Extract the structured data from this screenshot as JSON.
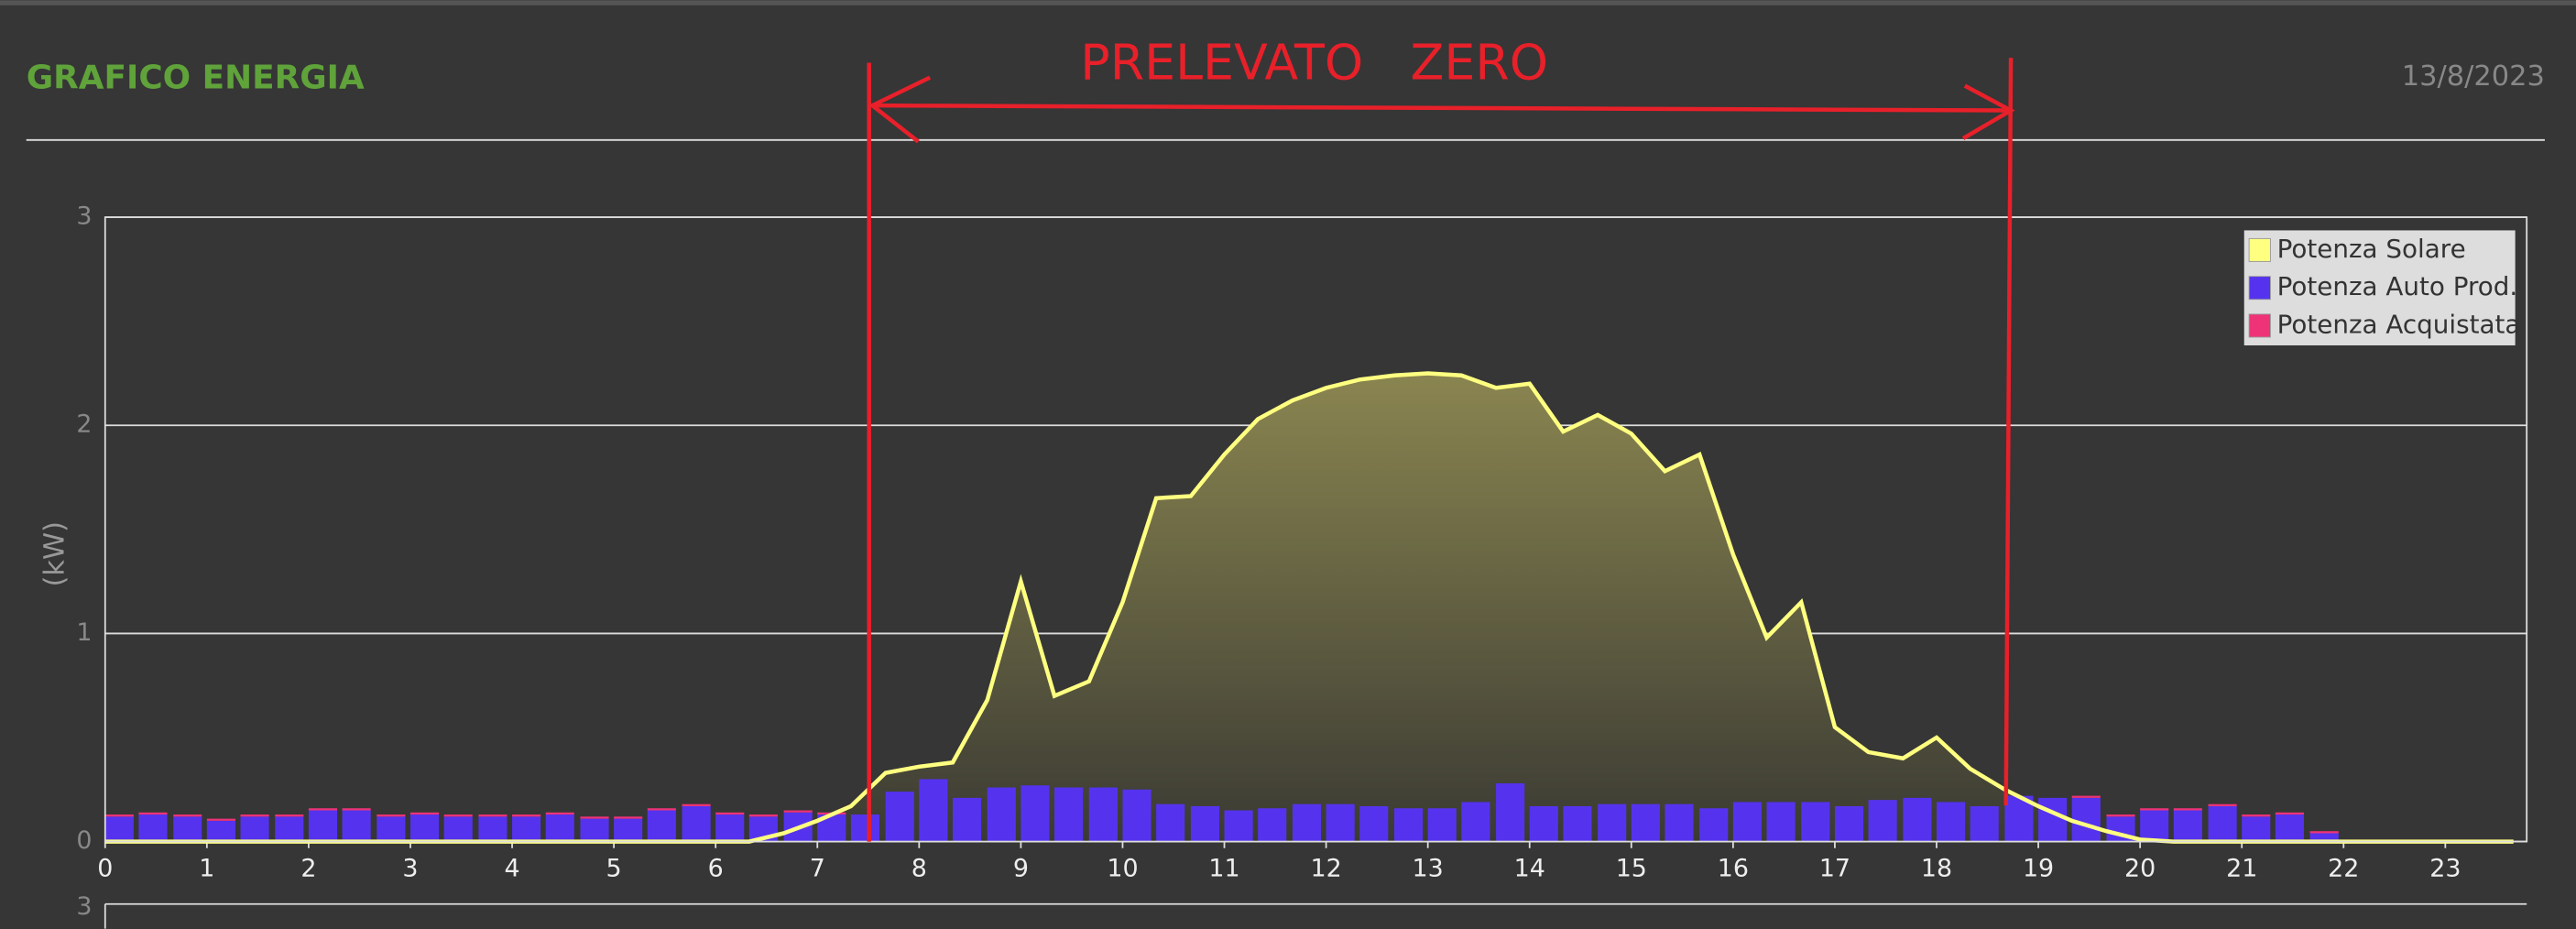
{
  "header": {
    "title": "GRAFICO ENERGIA",
    "date": "13/8/2023"
  },
  "annotation": "PRELEVATO   ZERO",
  "chart_data": {
    "type": "bar-line",
    "y_label": "(kW)",
    "x": [
      0,
      0.33,
      0.67,
      1,
      1.33,
      1.67,
      2,
      2.33,
      2.67,
      3,
      3.33,
      3.67,
      4,
      4.33,
      4.67,
      5,
      5.33,
      5.67,
      6,
      6.33,
      6.67,
      7,
      7.33,
      7.67,
      8,
      8.33,
      8.67,
      9,
      9.33,
      9.67,
      10,
      10.33,
      10.67,
      11,
      11.33,
      11.67,
      12,
      12.33,
      12.67,
      13,
      13.33,
      13.67,
      14,
      14.33,
      14.67,
      15,
      15.33,
      15.67,
      16,
      16.33,
      16.67,
      17,
      17.33,
      17.67,
      18,
      18.33,
      18.67,
      19,
      19.33,
      19.67,
      20,
      20.33,
      20.67,
      21,
      21.33,
      21.67,
      22,
      22.33,
      22.67,
      23,
      23.33,
      23.67
    ],
    "series": [
      {
        "name": "Potenza Solare",
        "color": "#ffff80",
        "values": [
          0,
          0,
          0,
          0,
          0,
          0,
          0,
          0,
          0,
          0,
          0,
          0,
          0,
          0,
          0,
          0,
          0,
          0,
          0,
          0,
          0.04,
          0.1,
          0.17,
          0.33,
          0.36,
          0.38,
          0.68,
          1.25,
          0.7,
          0.77,
          1.15,
          1.65,
          1.66,
          1.86,
          2.03,
          2.12,
          2.18,
          2.22,
          2.24,
          2.25,
          2.24,
          2.18,
          2.2,
          1.97,
          2.05,
          1.96,
          1.78,
          1.86,
          1.38,
          0.98,
          1.15,
          0.55,
          0.43,
          0.4,
          0.5,
          0.35,
          0.25,
          0.17,
          0.1,
          0.05,
          0.01,
          0,
          0,
          0,
          0,
          0,
          0,
          0,
          0,
          0,
          0,
          0
        ]
      },
      {
        "name": "Potenza Auto Prod.",
        "color": "#5533ee",
        "values": [
          0.12,
          0.13,
          0.12,
          0.1,
          0.12,
          0.12,
          0.15,
          0.15,
          0.12,
          0.13,
          0.12,
          0.12,
          0.12,
          0.13,
          0.11,
          0.11,
          0.15,
          0.17,
          0.13,
          0.12,
          0.14,
          0.13,
          0.13,
          0.24,
          0.3,
          0.21,
          0.26,
          0.27,
          0.26,
          0.26,
          0.25,
          0.18,
          0.17,
          0.15,
          0.16,
          0.18,
          0.18,
          0.17,
          0.16,
          0.16,
          0.19,
          0.28,
          0.17,
          0.17,
          0.18,
          0.18,
          0.18,
          0.16,
          0.19,
          0.19,
          0.19,
          0.17,
          0.2,
          0.21,
          0.19,
          0.17,
          0.22,
          0.21,
          0.21,
          0.12,
          0.15,
          0.15,
          0.17,
          0.12,
          0.13,
          0.04,
          0,
          0,
          0,
          0,
          0,
          0
        ]
      },
      {
        "name": "Potenza Acquistata",
        "color": "#ee3377",
        "values": [
          0.01,
          0.01,
          0.01,
          0.01,
          0.01,
          0.01,
          0.01,
          0.01,
          0.01,
          0.01,
          0.01,
          0.01,
          0.01,
          0.01,
          0.01,
          0.01,
          0.01,
          0.01,
          0.01,
          0.01,
          0.01,
          0.01,
          0,
          0,
          0,
          0,
          0,
          0,
          0,
          0,
          0,
          0,
          0,
          0,
          0,
          0,
          0,
          0,
          0,
          0,
          0,
          0,
          0,
          0,
          0,
          0,
          0,
          0,
          0,
          0,
          0,
          0,
          0,
          0,
          0,
          0,
          0,
          0,
          0.01,
          0.01,
          0.01,
          0.01,
          0.01,
          0.01,
          0.01,
          0.01,
          0,
          0,
          0,
          0,
          0,
          0
        ]
      }
    ],
    "xlim": [
      0,
      23.8
    ],
    "xticks": [
      0,
      1,
      2,
      3,
      4,
      5,
      6,
      7,
      8,
      9,
      10,
      11,
      12,
      13,
      14,
      15,
      16,
      17,
      18,
      19,
      20,
      21,
      22,
      23
    ],
    "ylim": [
      0,
      3
    ],
    "yticks": [
      0,
      1,
      2,
      3
    ],
    "grid": true
  },
  "lower_chart": {
    "yticks": [
      3
    ]
  }
}
